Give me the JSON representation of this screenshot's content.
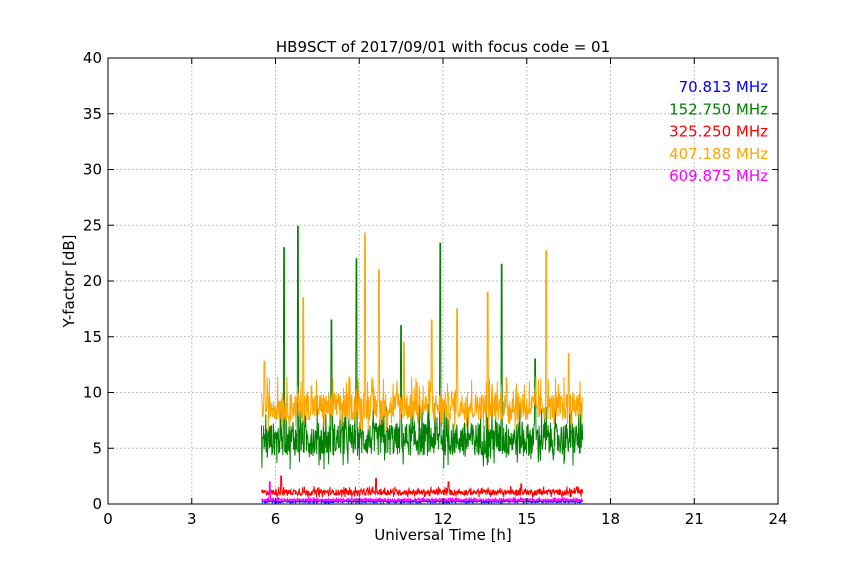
{
  "chart_data": {
    "type": "line",
    "title": "HB9SCT of 2017/09/01 with focus code = 01",
    "xlabel": "Universal Time [h]",
    "ylabel": "Y-factor [dB]",
    "xlim": [
      0,
      24
    ],
    "ylim": [
      0,
      40
    ],
    "xticks": [
      0,
      3,
      6,
      9,
      12,
      15,
      18,
      21,
      24
    ],
    "yticks": [
      0,
      5,
      10,
      15,
      20,
      25,
      30,
      35,
      40
    ],
    "grid": true,
    "legend_position": "top-right",
    "series": [
      {
        "name": "70.813 MHz",
        "color": "#0000ff",
        "x_range": [
          5.5,
          17.0
        ],
        "baseline": 0.2,
        "noise": 0.15,
        "spikes": []
      },
      {
        "name": "152.750 MHz",
        "color": "#008000",
        "x_range": [
          5.5,
          17.0
        ],
        "baseline": 5.5,
        "noise": 3.0,
        "spikes": [
          [
            6.3,
            23.0
          ],
          [
            6.8,
            24.9
          ],
          [
            8.0,
            16.5
          ],
          [
            8.9,
            22.0
          ],
          [
            10.5,
            16.0
          ],
          [
            11.9,
            23.4
          ],
          [
            14.1,
            21.5
          ],
          [
            15.3,
            13.0
          ]
        ]
      },
      {
        "name": "325.250 MHz",
        "color": "#ff0000",
        "x_range": [
          5.5,
          17.0
        ],
        "baseline": 1.0,
        "noise": 0.5,
        "spikes": [
          [
            6.2,
            2.5
          ],
          [
            9.6,
            2.3
          ],
          [
            12.2,
            2.0
          ],
          [
            14.8,
            1.8
          ]
        ]
      },
      {
        "name": "407.188 MHz",
        "color": "#ffa500",
        "x_range": [
          5.5,
          17.0
        ],
        "baseline": 8.5,
        "noise": 2.5,
        "spikes": [
          [
            5.6,
            12.8
          ],
          [
            7.0,
            18.5
          ],
          [
            9.2,
            24.3
          ],
          [
            9.7,
            21.0
          ],
          [
            10.6,
            14.5
          ],
          [
            11.6,
            16.5
          ],
          [
            12.5,
            17.5
          ],
          [
            13.6,
            19.0
          ],
          [
            15.7,
            22.7
          ],
          [
            16.5,
            13.5
          ]
        ]
      },
      {
        "name": "609.875 MHz",
        "color": "#ff00ff",
        "x_range": [
          5.5,
          17.0
        ],
        "baseline": 0.35,
        "noise": 0.2,
        "spikes": [
          [
            5.8,
            2.0
          ]
        ]
      }
    ]
  }
}
